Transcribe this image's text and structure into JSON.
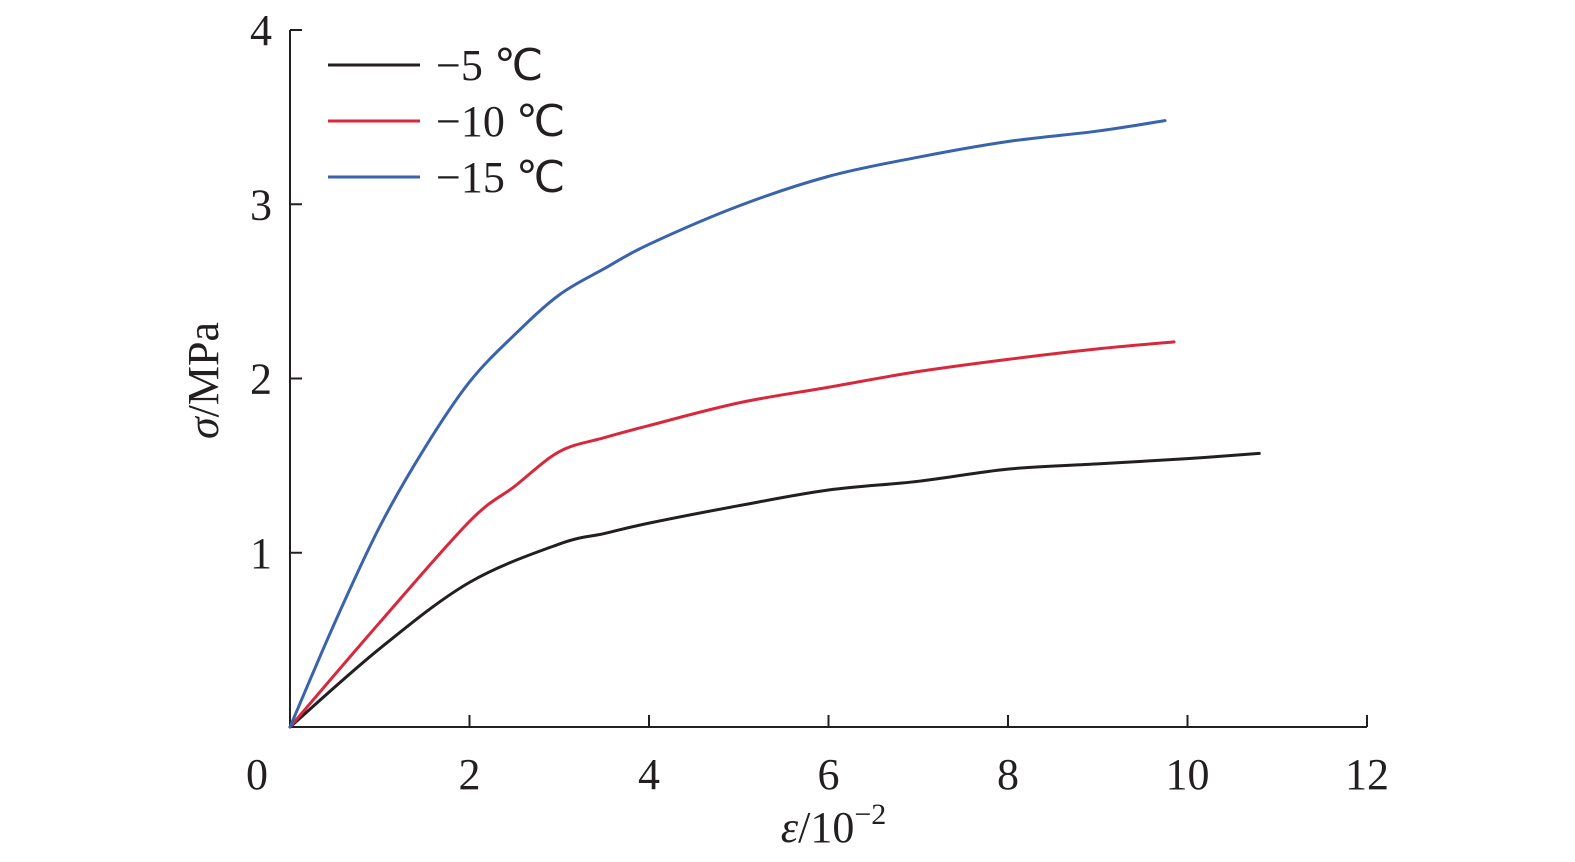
{
  "chart_data": {
    "type": "line",
    "xlabel_symbol": "ε",
    "xlabel_unit": "/10",
    "xlabel_exp": "−2",
    "ylabel_symbol": "σ",
    "ylabel_unit": "/MPa",
    "xlim": [
      0,
      12
    ],
    "ylim": [
      0,
      4
    ],
    "xticks": [
      0,
      2,
      4,
      6,
      8,
      10,
      12
    ],
    "yticks": [
      1,
      2,
      3,
      4
    ],
    "xtick_labels": [
      "0",
      "2",
      "4",
      "6",
      "8",
      "10",
      "12"
    ],
    "ytick_labels": [
      "1",
      "2",
      "3",
      "4"
    ],
    "grid": false,
    "legend_position": "top-left",
    "series": [
      {
        "name": "−5 ℃",
        "color": "#231f20",
        "x": [
          0,
          1,
          2,
          3,
          3.5,
          4,
          5,
          6,
          7,
          8,
          9,
          10,
          10.8
        ],
        "y": [
          0,
          0.45,
          0.83,
          1.05,
          1.11,
          1.17,
          1.27,
          1.36,
          1.41,
          1.48,
          1.51,
          1.54,
          1.57
        ]
      },
      {
        "name": "−10 ℃",
        "color": "#d7283c",
        "x": [
          0,
          1,
          2,
          2.5,
          3,
          3.5,
          4,
          5,
          6,
          7,
          8,
          9,
          9.85
        ],
        "y": [
          0,
          0.6,
          1.18,
          1.38,
          1.58,
          1.66,
          1.73,
          1.86,
          1.95,
          2.04,
          2.11,
          2.17,
          2.21
        ]
      },
      {
        "name": "−15 ℃",
        "color": "#3a63ad",
        "x": [
          0,
          0.5,
          1,
          1.5,
          2,
          2.5,
          3,
          3.5,
          4,
          5,
          6,
          7,
          8,
          9,
          9.75
        ],
        "y": [
          0,
          0.6,
          1.15,
          1.6,
          1.98,
          2.25,
          2.48,
          2.63,
          2.77,
          2.99,
          3.16,
          3.27,
          3.36,
          3.42,
          3.48
        ]
      }
    ]
  }
}
